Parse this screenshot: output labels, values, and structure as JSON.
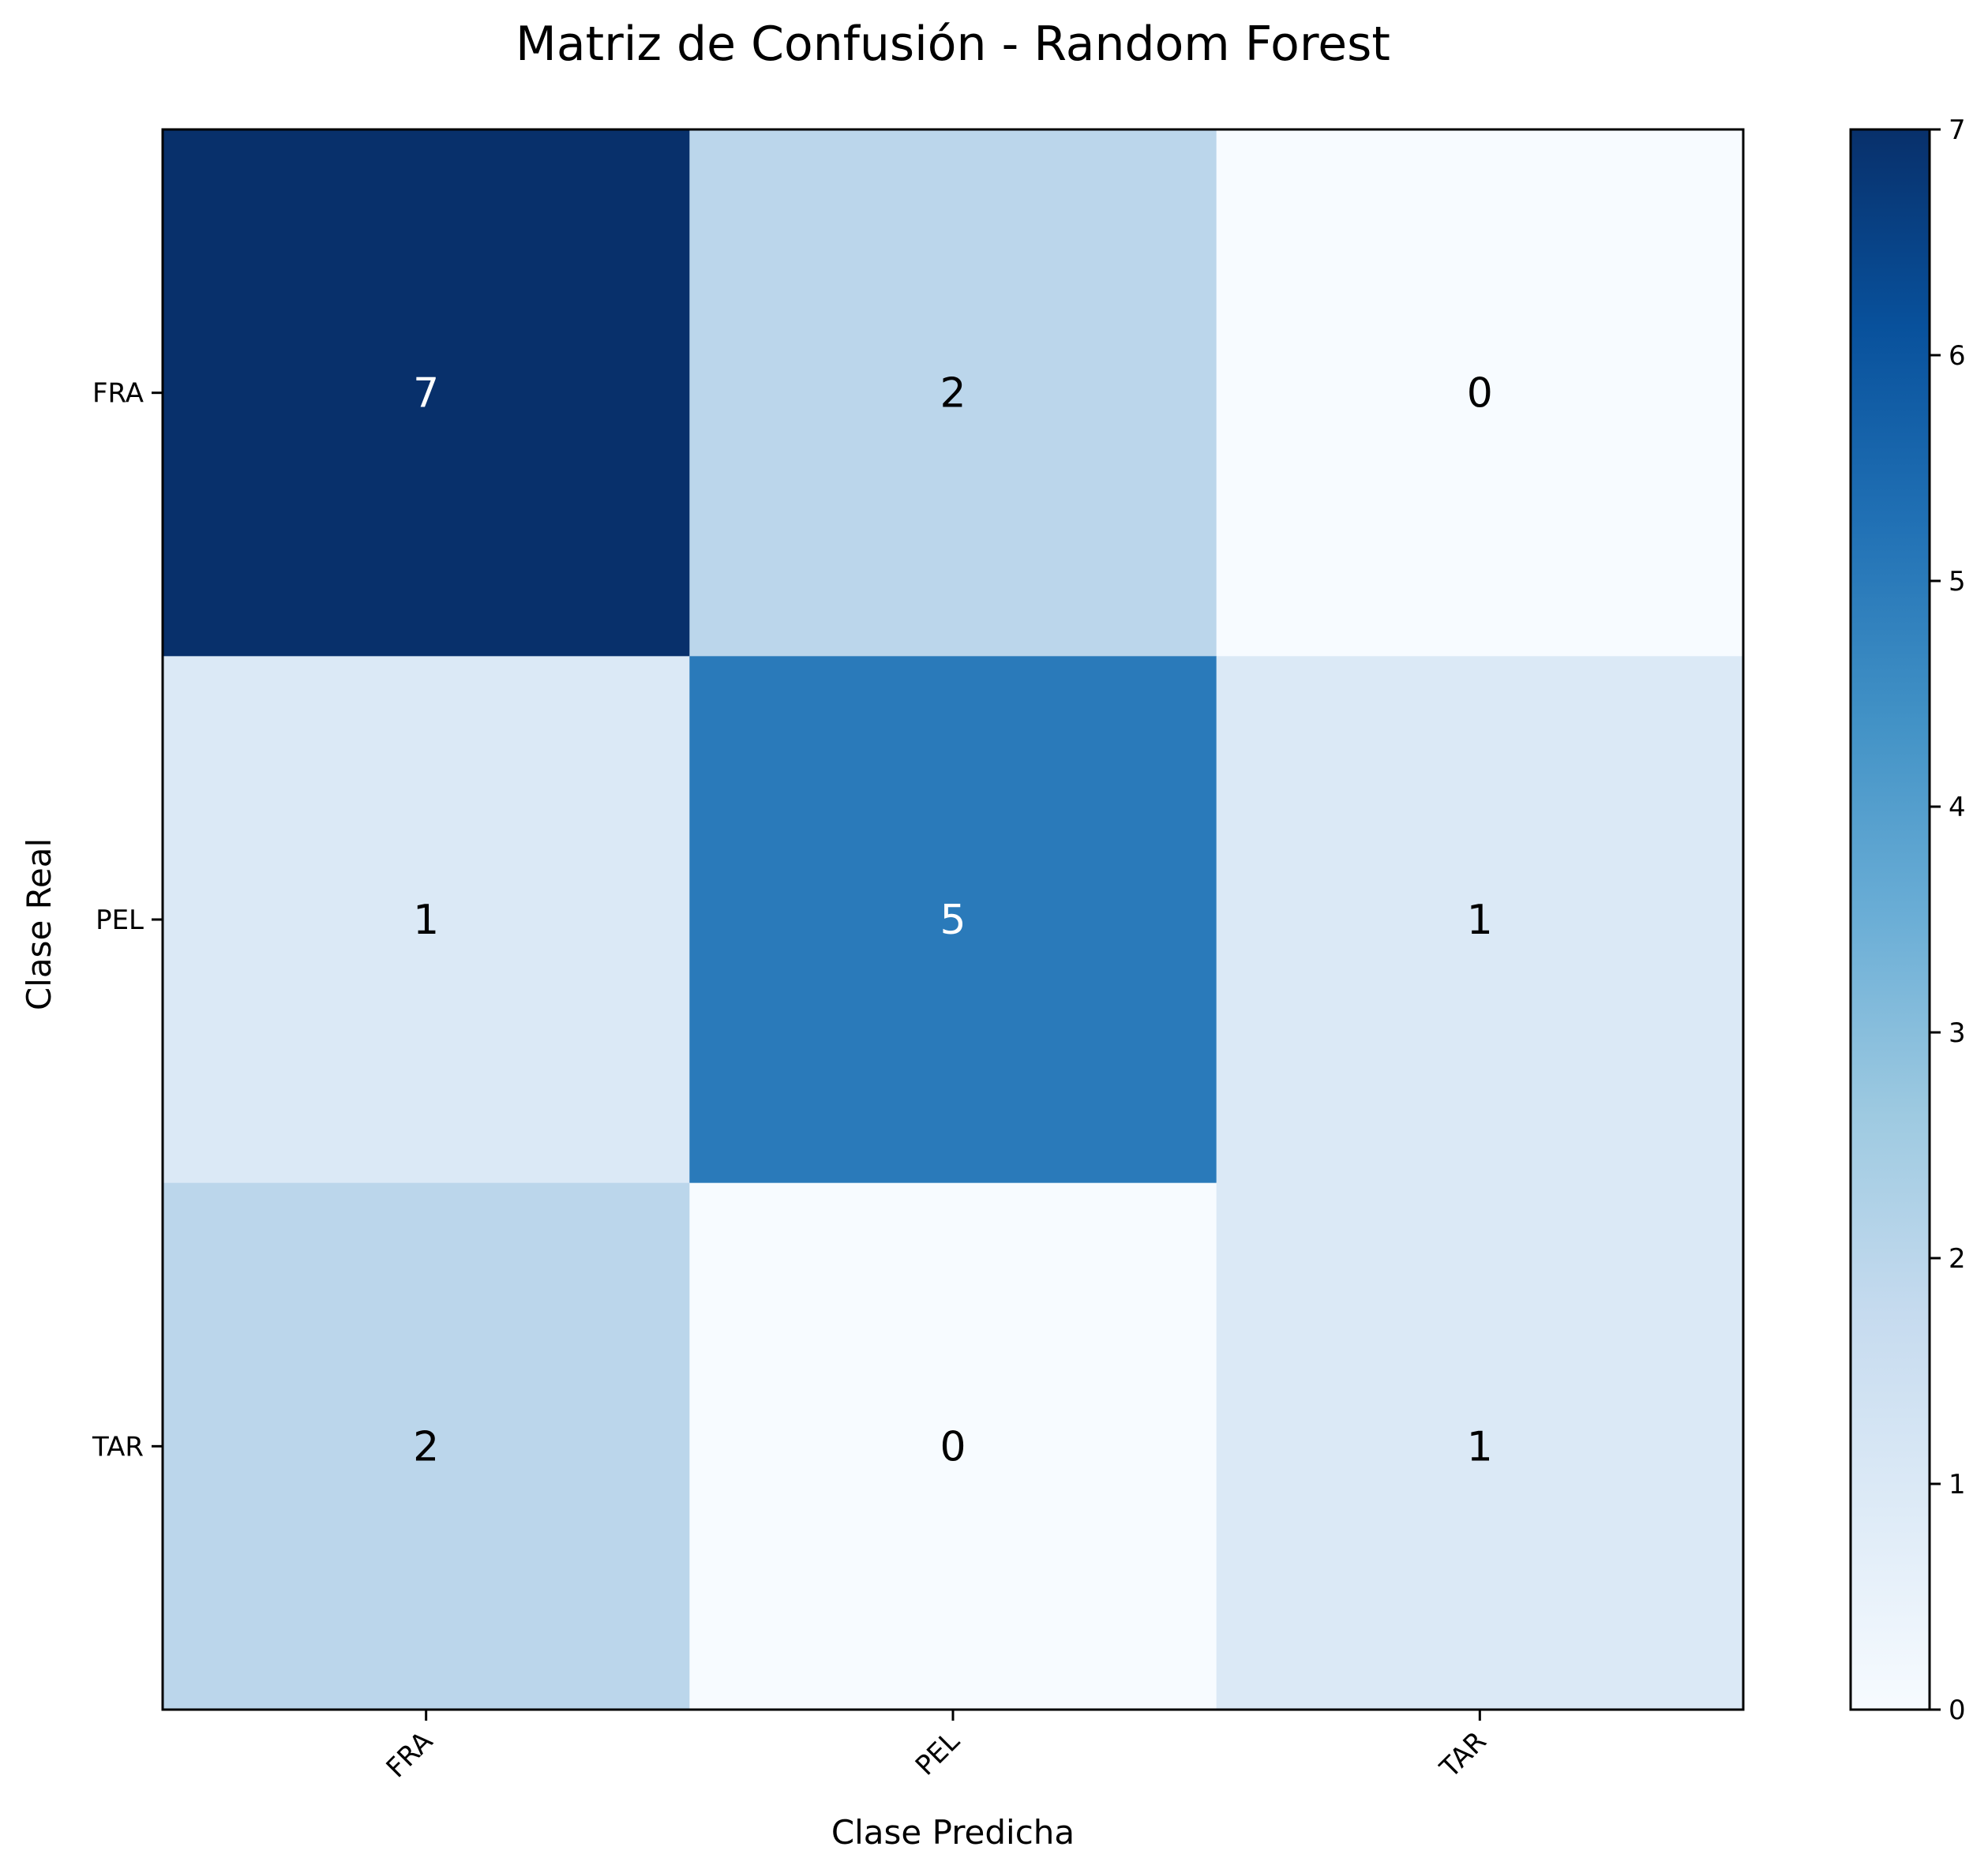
{
  "chart_data": {
    "type": "heatmap",
    "title": "Matriz de Confusión - Random Forest",
    "xlabel": "Clase Predicha",
    "ylabel": "Clase Real",
    "x_categories": [
      "FRA",
      "PEL",
      "TAR"
    ],
    "y_categories": [
      "FRA",
      "PEL",
      "TAR"
    ],
    "values": [
      [
        7,
        2,
        0
      ],
      [
        1,
        5,
        1
      ],
      [
        2,
        0,
        1
      ]
    ],
    "colormap": "Blues",
    "colorbar": {
      "min": 0,
      "max": 7,
      "ticks": [
        "0",
        "1",
        "2",
        "3",
        "4",
        "5",
        "6",
        "7"
      ]
    },
    "colors": {
      "scale": [
        "#f7fbff",
        "#deebf7",
        "#c6dbef",
        "#9ecae1",
        "#6baed6",
        "#4292c6",
        "#2171b5",
        "#08519c",
        "#08306b"
      ],
      "text_dark": "#000000",
      "text_light": "#ffffff",
      "axis": "#000000"
    },
    "grid": false
  }
}
